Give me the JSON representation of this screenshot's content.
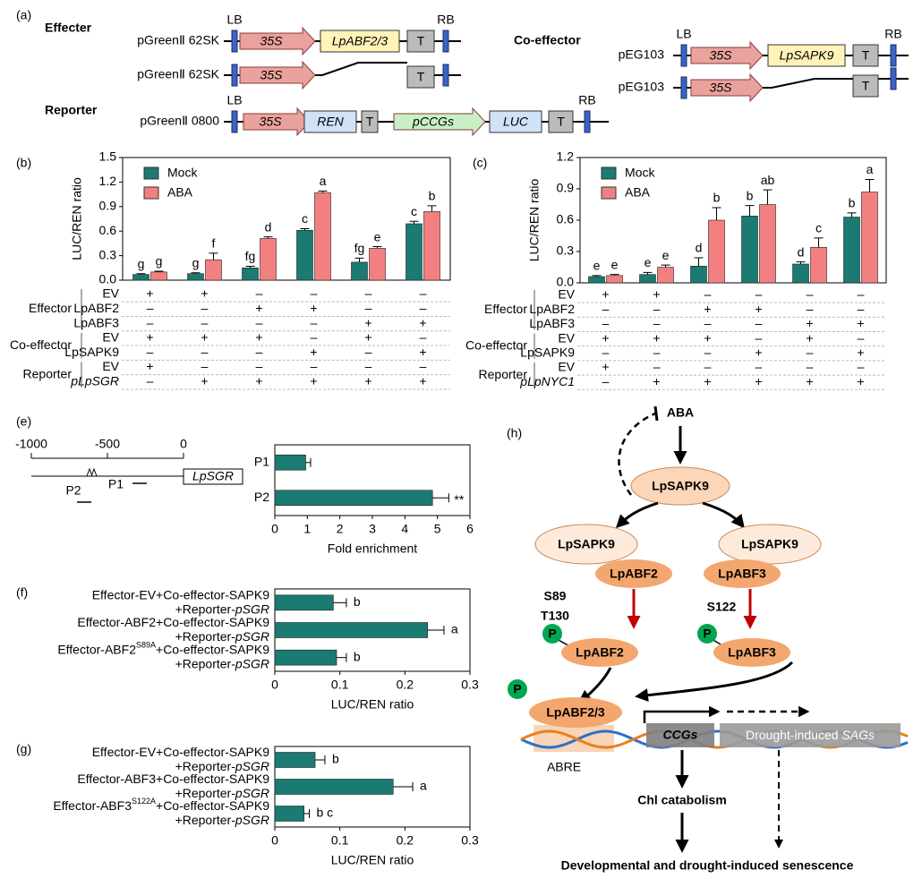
{
  "panel_labels": [
    "(a)",
    "(b)",
    "(c)",
    "(e)",
    "(f)",
    "(g)",
    "(h)"
  ],
  "construct_map": {
    "effecter_title": "Effecter",
    "coeffector_title": "Co-effector",
    "reporter_title": "Reporter",
    "lb": "LB",
    "rb": "RB",
    "promoter": "35S",
    "terminator": "T",
    "vector_effecter": "pGreenⅡ 62SK",
    "vector_reporter": "pGreenⅡ 0800",
    "vector_coeffector": "pEG103",
    "abf_insert": "LpABF2/3",
    "sapk_insert": "LpSAPK9",
    "ren": "REN",
    "ccg_promoter": "pCCGs",
    "luc": "LUC"
  },
  "promoter_map": {
    "positions": [
      -1000,
      -500,
      0
    ],
    "gene": "LpSGR",
    "probes": [
      "P1",
      "P2"
    ]
  },
  "chart_data": [
    {
      "type": "bar",
      "y_label": "LUC/REN ratio",
      "legend": "top-left",
      "ylim": [
        0,
        1.5
      ],
      "yticks": [
        {
          "value": 0,
          "label": "0.0"
        },
        0.3,
        0.6,
        0.9,
        1.2,
        1.5
      ],
      "series": [
        {
          "name": "Mock",
          "color": "#1b7a72",
          "values": [
            0.07,
            0.08,
            0.15,
            0.61,
            0.22,
            0.69
          ],
          "errors": [
            0.01,
            0.01,
            0.02,
            0.02,
            0.05,
            0.03
          ],
          "letters": [
            "g",
            "g",
            "fg",
            "c",
            "fg",
            "c"
          ]
        },
        {
          "name": "ABA",
          "color": "#f28080",
          "values": [
            0.1,
            0.25,
            0.51,
            1.07,
            0.39,
            0.84
          ],
          "errors": [
            0.01,
            0.08,
            0.02,
            0.02,
            0.02,
            0.07
          ],
          "letters": [
            "g",
            "f",
            "d",
            "a",
            "e",
            "b"
          ]
        }
      ],
      "table": {
        "groups": [
          {
            "name": "Effector",
            "rows": [
              {
                "name": "EV",
                "cells": [
                  "+",
                  "+",
                  "–",
                  "–",
                  "–",
                  "–"
                ]
              },
              {
                "name": "LpABF2",
                "cells": [
                  "–",
                  "–",
                  "+",
                  "+",
                  "–",
                  "–"
                ]
              },
              {
                "name": "LpABF3",
                "cells": [
                  "–",
                  "–",
                  "–",
                  "–",
                  "+",
                  "+"
                ]
              }
            ]
          },
          {
            "name": "Co-effector",
            "rows": [
              {
                "name": "EV",
                "cells": [
                  "+",
                  "+",
                  "+",
                  "–",
                  "+",
                  "–"
                ]
              },
              {
                "name": "LpSAPK9",
                "cells": [
                  "–",
                  "–",
                  "–",
                  "+",
                  "–",
                  "+"
                ]
              }
            ]
          },
          {
            "name": "Reporter",
            "rows": [
              {
                "name": "EV",
                "cells": [
                  "+",
                  "–",
                  "–",
                  "–",
                  "–",
                  "–"
                ]
              },
              {
                "name": "pLpSGR",
                "italic": true,
                "cells": [
                  "–",
                  "+",
                  "+",
                  "+",
                  "+",
                  "+"
                ]
              }
            ]
          }
        ]
      }
    },
    {
      "type": "bar",
      "y_label": "LUC/REN ratio",
      "legend": "top-left",
      "ylim": [
        0,
        1.2
      ],
      "yticks": [
        {
          "value": 0,
          "label": "0.0"
        },
        0.3,
        0.6,
        0.9,
        1.2
      ],
      "series": [
        {
          "name": "Mock",
          "color": "#1b7a72",
          "values": [
            0.06,
            0.08,
            0.16,
            0.64,
            0.18,
            0.63
          ],
          "errors": [
            0.01,
            0.02,
            0.08,
            0.1,
            0.02,
            0.04
          ],
          "letters": [
            "e",
            "e",
            "d",
            "b",
            "d",
            "b"
          ]
        },
        {
          "name": "ABA",
          "color": "#f28080",
          "values": [
            0.07,
            0.15,
            0.6,
            0.75,
            0.34,
            0.87
          ],
          "errors": [
            0.01,
            0.02,
            0.12,
            0.14,
            0.09,
            0.12
          ],
          "letters": [
            "e",
            "e",
            "b",
            "ab",
            "c",
            "a"
          ]
        }
      ],
      "table": {
        "groups": [
          {
            "name": "Effector",
            "rows": [
              {
                "name": "EV",
                "cells": [
                  "+",
                  "+",
                  "–",
                  "–",
                  "–",
                  "–"
                ]
              },
              {
                "name": "LpABF2",
                "cells": [
                  "–",
                  "–",
                  "+",
                  "+",
                  "–",
                  "–"
                ]
              },
              {
                "name": "LpABF3",
                "cells": [
                  "–",
                  "–",
                  "–",
                  "–",
                  "+",
                  "+"
                ]
              }
            ]
          },
          {
            "name": "Co-effector",
            "rows": [
              {
                "name": "EV",
                "cells": [
                  "+",
                  "+",
                  "+",
                  "–",
                  "+",
                  "–"
                ]
              },
              {
                "name": "LpSAPK9",
                "cells": [
                  "–",
                  "–",
                  "–",
                  "+",
                  "–",
                  "+"
                ]
              }
            ]
          },
          {
            "name": "Reporter",
            "rows": [
              {
                "name": "EV",
                "cells": [
                  "+",
                  "–",
                  "–",
                  "–",
                  "–",
                  "–"
                ]
              },
              {
                "name": "pLpNYC1",
                "italic": true,
                "cells": [
                  "–",
                  "+",
                  "+",
                  "+",
                  "+",
                  "+"
                ]
              }
            ]
          }
        ]
      }
    },
    {
      "type": "hbar",
      "x_label": "Fold enrichment",
      "color": "#1b7a72",
      "categories": [
        "P1",
        "P2"
      ],
      "values": [
        0.95,
        4.85
      ],
      "errors": [
        0.15,
        0.5
      ],
      "significance": [
        null,
        "**"
      ],
      "xlim": [
        0,
        6
      ],
      "xticks": [
        0,
        1,
        2,
        3,
        4,
        5,
        6
      ]
    },
    {
      "type": "hbar",
      "x_label": "LUC/REN ratio",
      "color": "#1b7a72",
      "categories": [
        {
          "line1": "Effector-EV+Co-effector-SAPK9",
          "line2": "+Reporter-",
          "line2_italic": "pSGR"
        },
        {
          "line1": "Effector-ABF2+Co-effector-SAPK9",
          "line2": "+Reporter-",
          "line2_italic": "pSGR"
        },
        {
          "line1": "Effector-ABF2",
          "line1_sup": "S89A",
          "line1_end": "+Co-effector-SAPK9",
          "line2": "+Reporter-",
          "line2_italic": "pSGR"
        }
      ],
      "values": [
        0.09,
        0.235,
        0.095
      ],
      "errors": [
        0.02,
        0.025,
        0.015
      ],
      "letters": [
        "b",
        "a",
        "b"
      ],
      "xlim": [
        0,
        0.3
      ],
      "xticks": [
        0,
        0.1,
        0.2,
        0.3
      ]
    },
    {
      "type": "hbar",
      "x_label": "LUC/REN ratio",
      "color": "#1b7a72",
      "categories": [
        {
          "line1": "Effector-EV+Co-effector-SAPK9",
          "line2": "+Reporter-",
          "line2_italic": "pSGR"
        },
        {
          "line1": "Effector-ABF3+Co-effector-SAPK9",
          "line2": "+Reporter-",
          "line2_italic": "pSGR"
        },
        {
          "line1": "Effector-ABF3",
          "line1_sup": "S122A",
          "line1_end": "+Co-effector-SAPK9",
          "line2": "+Reporter-",
          "line2_italic": "pSGR"
        }
      ],
      "values": [
        0.062,
        0.182,
        0.045
      ],
      "errors": [
        0.015,
        0.03,
        0.008
      ],
      "letters": [
        "b",
        "a",
        "b c"
      ],
      "xlim": [
        0,
        0.3
      ],
      "xticks": [
        0,
        0.1,
        0.2,
        0.3
      ]
    }
  ],
  "pathway": {
    "signal": "ABA",
    "kinase": "LpSAPK9",
    "abf2": "LpABF2",
    "abf3": "LpABF3",
    "sites_abf2": [
      "S89",
      "T130"
    ],
    "sites_abf3": [
      "S122"
    ],
    "phospho": "P",
    "complex": "LpABF2/3",
    "element": "ABRE",
    "ccgs": "CCGs",
    "sags_prefix": "Drought-induced ",
    "sags": "SAGs",
    "process": "Chl catabolism",
    "outcome": "Developmental and drought-induced senescence"
  }
}
